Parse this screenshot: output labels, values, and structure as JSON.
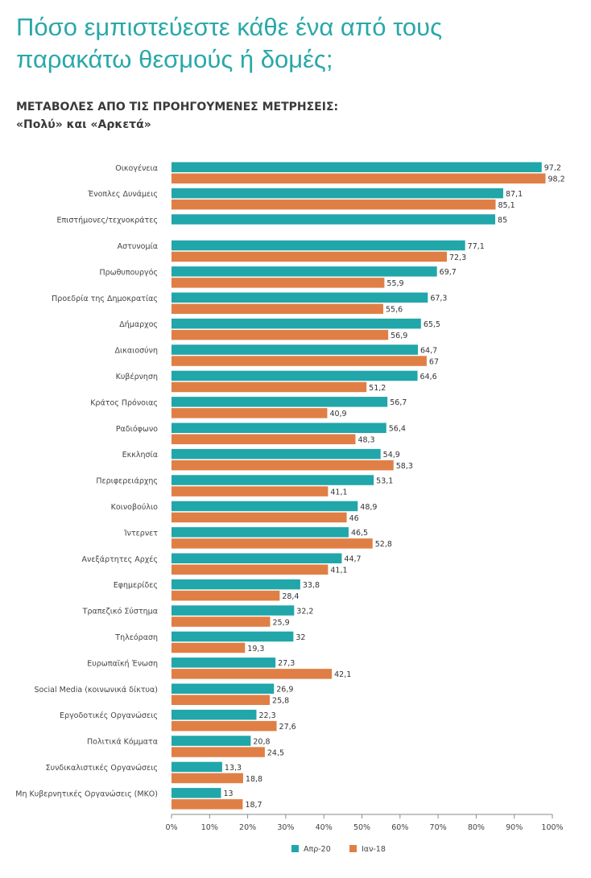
{
  "header": {
    "title_line1": "Πόσο εμπιστεύεστε κάθε ένα από τους",
    "title_line2": "παρακάτω θεσμούς ή δομές;",
    "subtitle_line1": "ΜΕΤΑΒΟΛΕΣ ΑΠΟ ΤΙΣ ΠΡΟΗΓΟΥΜΕΝΕΣ ΜΕΤΡΗΣΕΙΣ:",
    "subtitle_line2": "«Πολύ» και «Αρκετά»"
  },
  "colors": {
    "series1": "#21a6aa",
    "series2": "#e07f45",
    "axis": "#8a8a8a",
    "text": "#444444"
  },
  "chart_data": {
    "type": "bar",
    "orientation": "horizontal",
    "xlim": [
      0,
      100
    ],
    "ticks": [
      "0%",
      "10%",
      "20%",
      "30%",
      "40%",
      "50%",
      "60%",
      "70%",
      "80%",
      "90%",
      "100%"
    ],
    "legend_position": "bottom",
    "grid": false,
    "categories": [
      "Οικογένεια",
      "Ένοπλες Δυνάμεις",
      "Επιστήμονες/τεχνοκράτες",
      "Αστυνομία",
      "Πρωθυπουργός",
      "Προεδρία της Δημοκρατίας",
      "Δήμαρχος",
      "Δικαιοσύνη",
      "Κυβέρνηση",
      "Κράτος Πρόνοιας",
      "Ραδιόφωνο",
      "Εκκλησία",
      "Περιφερειάρχης",
      "Κοινοβούλιο",
      "Ίντερνετ",
      "Ανεξάρτητες Αρχές",
      "Εφημερίδες",
      "Τραπεζικό Σύστημα",
      "Τηλεόραση",
      "Ευρωπαϊκή Ένωση",
      "Social Media (κοινωνικά δίκτυα)",
      "Εργοδοτικές Οργανώσεις",
      "Πολιτικά Κόμματα",
      "Συνδικαλιστικές Οργανώσεις",
      "Μη Κυβερνητικές Οργανώσεις (ΜΚΟ)"
    ],
    "series": [
      {
        "name": "Απρ-20",
        "values": [
          97.2,
          87.1,
          85,
          77.1,
          69.7,
          67.3,
          65.5,
          64.7,
          64.6,
          56.7,
          56.4,
          54.9,
          53.1,
          48.9,
          46.5,
          44.7,
          33.8,
          32.2,
          32,
          27.3,
          26.9,
          22.3,
          20.8,
          13.3,
          13
        ],
        "labels": [
          "97,2",
          "87,1",
          "85",
          "77,1",
          "69,7",
          "67,3",
          "65,5",
          "64,7",
          "64,6",
          "56,7",
          "56,4",
          "54,9",
          "53,1",
          "48,9",
          "46,5",
          "44,7",
          "33,8",
          "32,2",
          "32",
          "27,3",
          "26,9",
          "22,3",
          "20,8",
          "13,3",
          "13"
        ]
      },
      {
        "name": "Ιαν-18",
        "values": [
          98.2,
          85.1,
          null,
          72.3,
          55.9,
          55.6,
          56.9,
          67,
          51.2,
          40.9,
          48.3,
          58.3,
          41.1,
          46,
          52.8,
          41.1,
          28.4,
          25.9,
          19.3,
          42.1,
          25.8,
          27.6,
          24.5,
          18.8,
          18.7
        ],
        "labels": [
          "98,2",
          "85,1",
          "",
          "72,3",
          "55,9",
          "55,6",
          "56,9",
          "67",
          "51,2",
          "40,9",
          "48,3",
          "58,3",
          "41,1",
          "46",
          "52,8",
          "41,1",
          "28,4",
          "25,9",
          "19,3",
          "42,1",
          "25,8",
          "27,6",
          "24,5",
          "18,8",
          "18,7"
        ]
      }
    ]
  }
}
